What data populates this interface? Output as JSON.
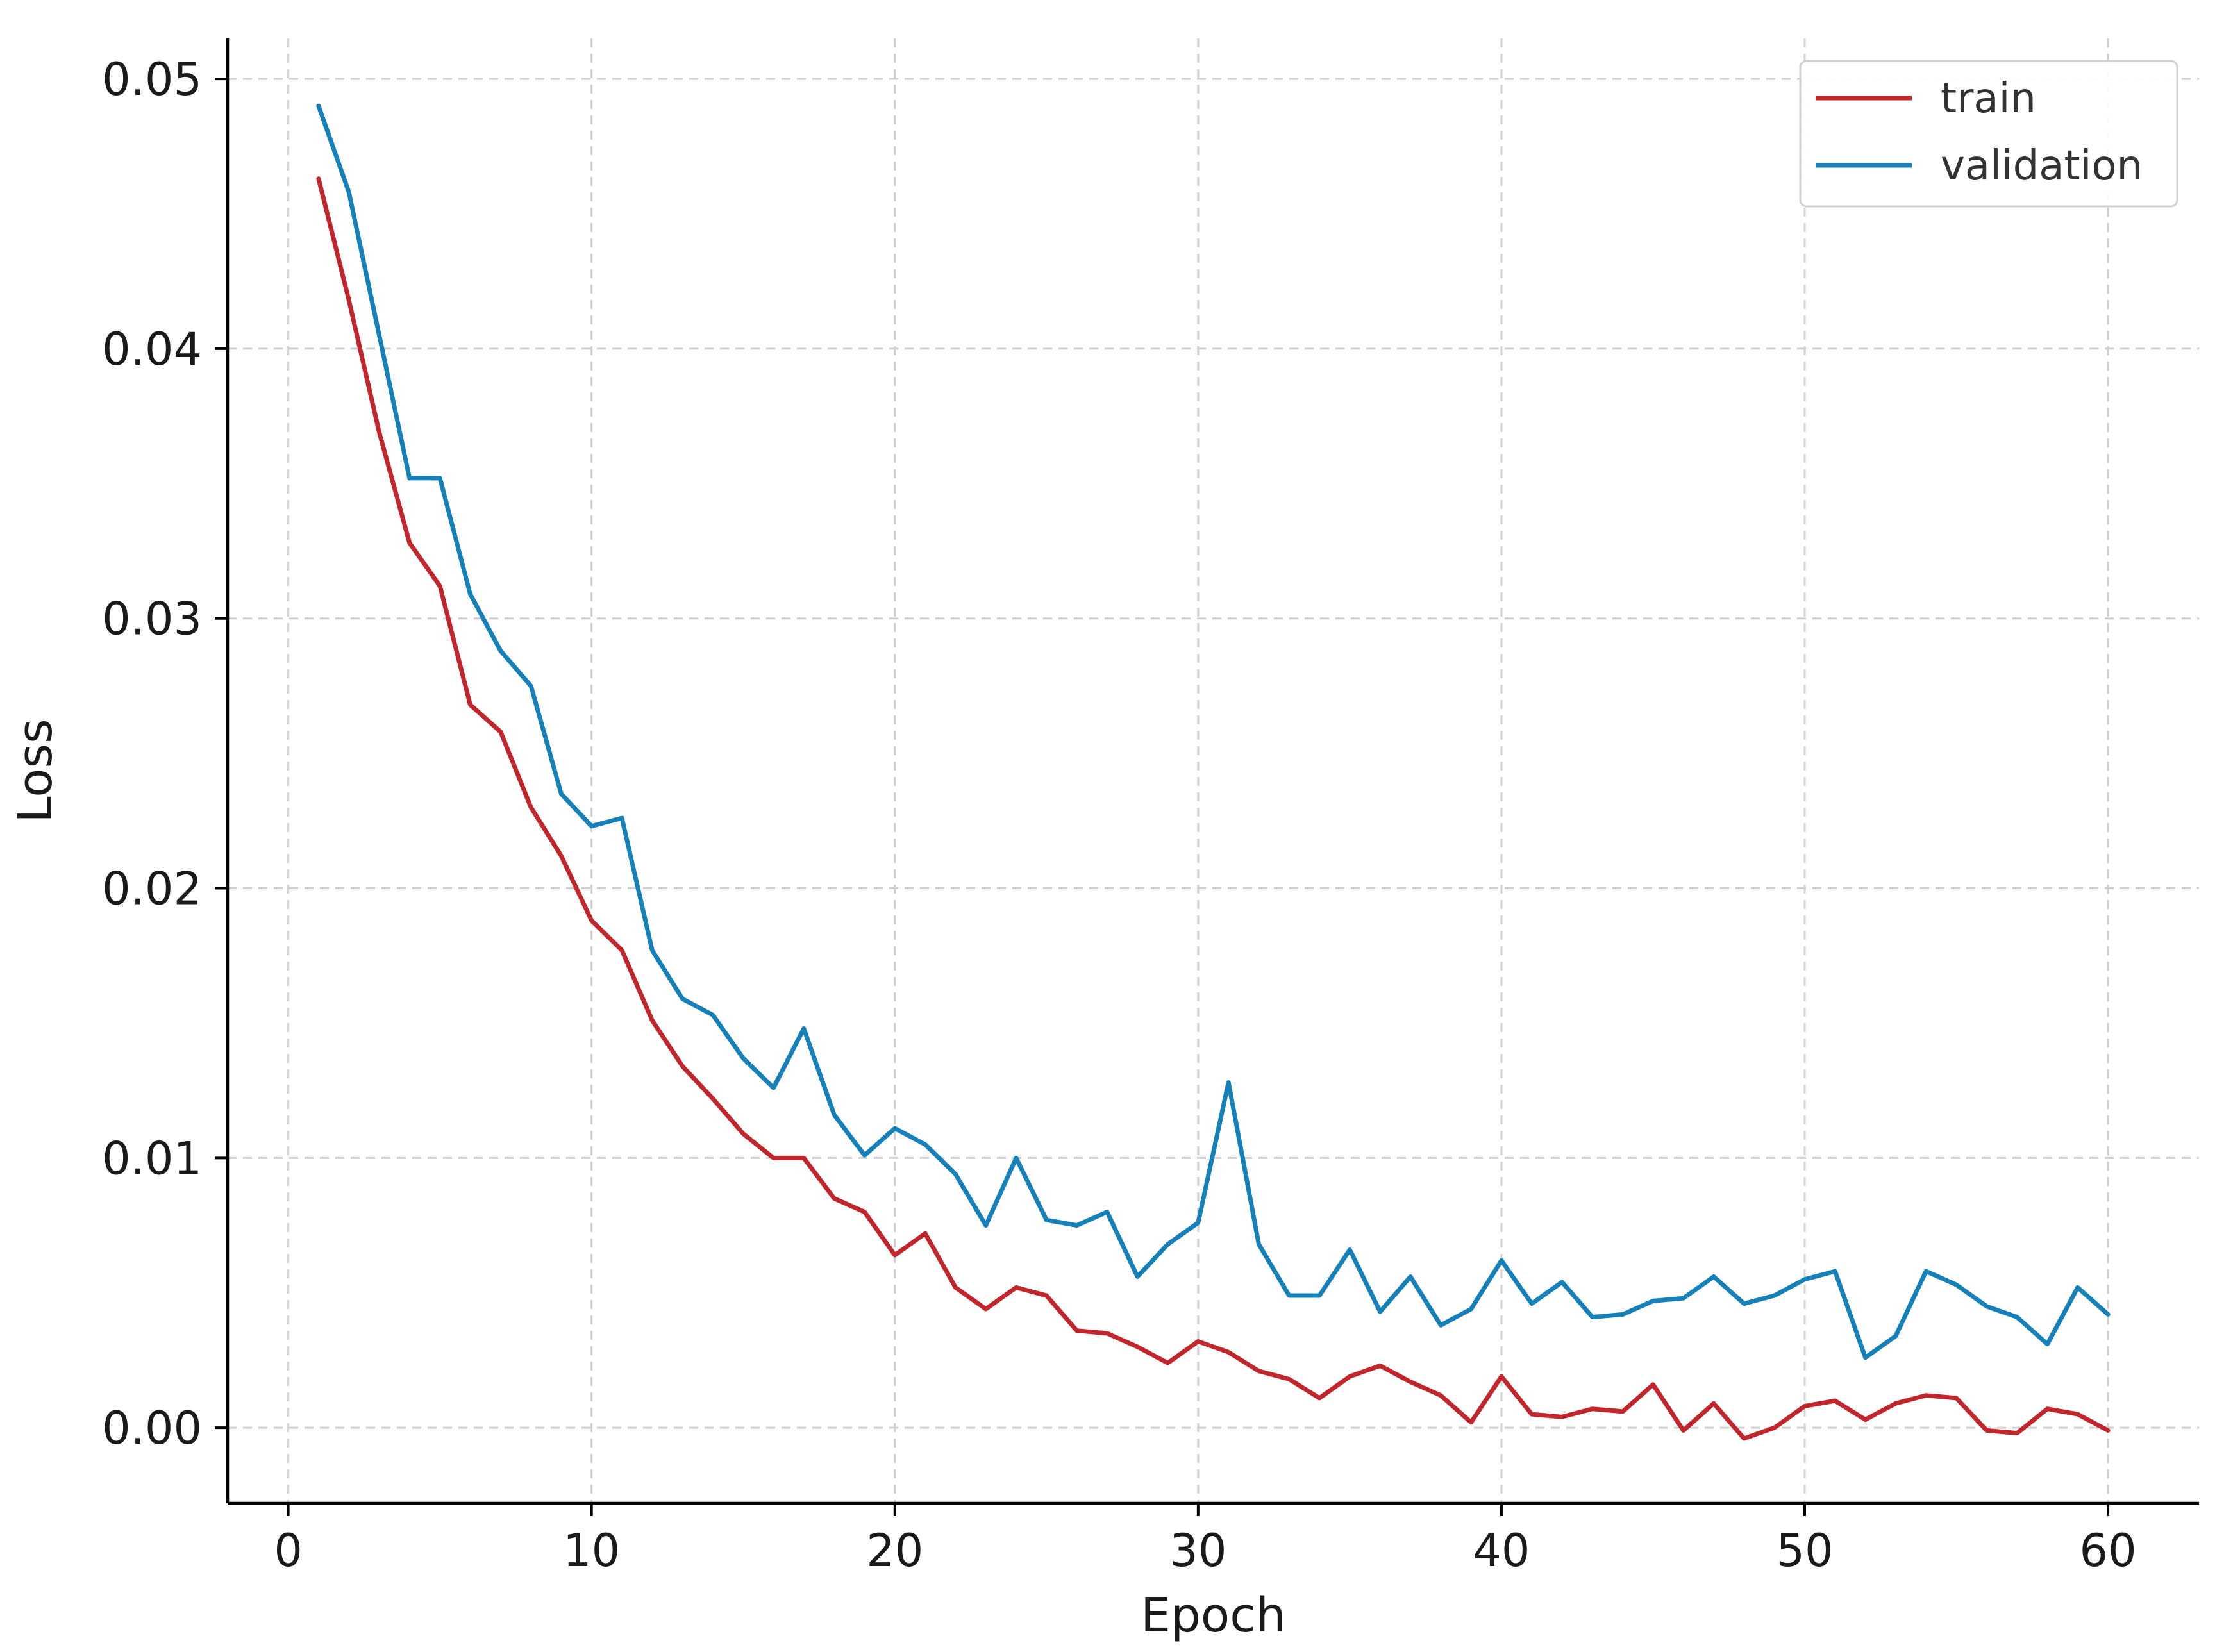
{
  "chart_data": {
    "type": "line",
    "xlabel": "Epoch",
    "ylabel": "Loss",
    "xlim": [
      -2,
      63
    ],
    "ylim": [
      -0.0028,
      0.0515
    ],
    "xticks": [
      0,
      10,
      20,
      30,
      40,
      50,
      60
    ],
    "yticks": [
      0.0,
      0.01,
      0.02,
      0.03,
      0.04,
      0.05
    ],
    "ytick_labels": [
      "0.00",
      "0.01",
      "0.02",
      "0.03",
      "0.04",
      "0.05"
    ],
    "grid": true,
    "legend_position": "top-right",
    "x": [
      1,
      2,
      3,
      4,
      5,
      6,
      7,
      8,
      9,
      10,
      11,
      12,
      13,
      14,
      15,
      16,
      17,
      18,
      19,
      20,
      21,
      22,
      23,
      24,
      25,
      26,
      27,
      28,
      29,
      30,
      31,
      32,
      33,
      34,
      35,
      36,
      37,
      38,
      39,
      40,
      41,
      42,
      43,
      44,
      45,
      46,
      47,
      48,
      49,
      50,
      51,
      52,
      53,
      54,
      55,
      56,
      57,
      58,
      59,
      60
    ],
    "series": [
      {
        "name": "train",
        "color": "#c0262c",
        "values": [
          0.0463,
          0.0418,
          0.0369,
          0.0328,
          0.0312,
          0.0268,
          0.0258,
          0.023,
          0.0212,
          0.0188,
          0.0177,
          0.0151,
          0.0134,
          0.0122,
          0.0109,
          0.01,
          0.01,
          0.0085,
          0.008,
          0.0064,
          0.0072,
          0.0052,
          0.0044,
          0.0052,
          0.0049,
          0.0036,
          0.0035,
          0.003,
          0.0024,
          0.0032,
          0.0028,
          0.0021,
          0.0018,
          0.0011,
          0.0019,
          0.0023,
          0.0017,
          0.0012,
          0.0002,
          0.0019,
          0.0005,
          0.0004,
          0.0007,
          0.0006,
          0.0016,
          -0.0001,
          0.0009,
          -0.0004,
          0.0,
          0.0008,
          0.001,
          0.0003,
          0.0009,
          0.0012,
          0.0011,
          -0.0001,
          -0.0002,
          0.0007,
          0.0005,
          -0.0001
        ]
      },
      {
        "name": "validation",
        "color": "#1581b8",
        "values": [
          0.049,
          0.0458,
          0.0405,
          0.0352,
          0.0352,
          0.0309,
          0.0288,
          0.0275,
          0.0235,
          0.0223,
          0.0226,
          0.0177,
          0.0159,
          0.0153,
          0.0137,
          0.0126,
          0.0148,
          0.0116,
          0.0101,
          0.0111,
          0.0105,
          0.0094,
          0.0075,
          0.01,
          0.0077,
          0.0075,
          0.008,
          0.0056,
          0.0068,
          0.0076,
          0.0128,
          0.0068,
          0.0049,
          0.0049,
          0.0066,
          0.0043,
          0.0056,
          0.0038,
          0.0044,
          0.0062,
          0.0046,
          0.0054,
          0.0041,
          0.0042,
          0.0047,
          0.0048,
          0.0056,
          0.0046,
          0.0049,
          0.0055,
          0.0058,
          0.0026,
          0.0034,
          0.0058,
          0.0053,
          0.0045,
          0.0041,
          0.0031,
          0.0052,
          0.0042
        ]
      }
    ]
  }
}
